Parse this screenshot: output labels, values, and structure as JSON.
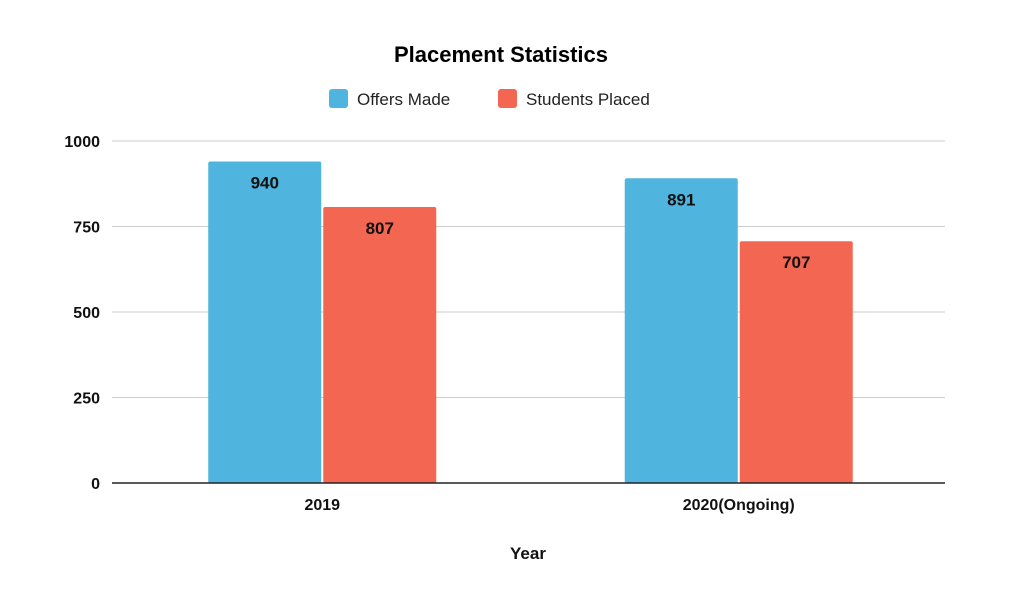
{
  "chart_data": {
    "type": "bar",
    "title": "Placement Statistics",
    "xlabel": "Year",
    "ylabel": "",
    "categories": [
      "2019",
      "2020(Ongoing)"
    ],
    "series": [
      {
        "name": "Offers Made",
        "values": [
          940,
          891
        ],
        "color": "#4fb4de"
      },
      {
        "name": "Students Placed",
        "values": [
          807,
          707
        ],
        "color": "#f26652"
      }
    ],
    "ylim": [
      0,
      1000
    ],
    "yticks": [
      "0",
      "250",
      "500",
      "750",
      "1000"
    ],
    "ytick_values": [
      0,
      250,
      500,
      750,
      1000
    ],
    "grid": true,
    "legend_position": "top-center"
  }
}
